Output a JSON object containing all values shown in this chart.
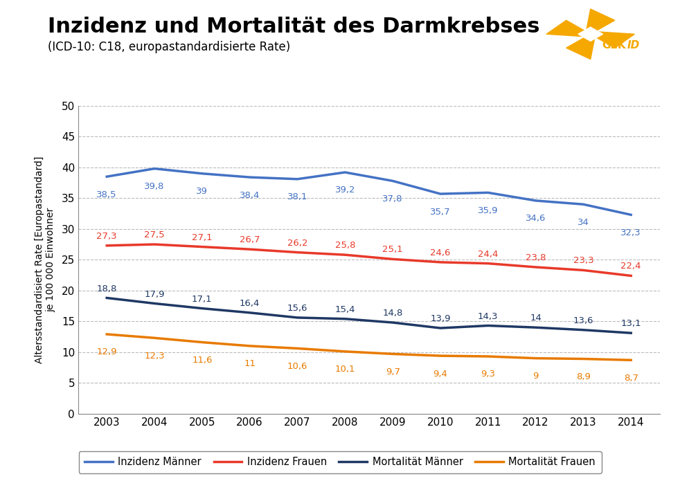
{
  "title": "Inzidenz und Mortalität des Darmkrebses",
  "subtitle": "(ICD-10: C18, europastandardisierte Rate)",
  "ylabel": "Altersstandardisiert Rate [Europastandard]\nje 100 000 Einwohner",
  "years": [
    2003,
    2004,
    2005,
    2006,
    2007,
    2008,
    2009,
    2010,
    2011,
    2012,
    2013,
    2014
  ],
  "inzidenz_maenner": [
    38.5,
    39.8,
    39.0,
    38.4,
    38.1,
    39.2,
    37.8,
    35.7,
    35.9,
    34.6,
    34.0,
    32.3
  ],
  "inzidenz_frauen": [
    27.3,
    27.5,
    27.1,
    26.7,
    26.2,
    25.8,
    25.1,
    24.6,
    24.4,
    23.8,
    23.3,
    22.4
  ],
  "mortalitaet_maenner": [
    18.8,
    17.9,
    17.1,
    16.4,
    15.6,
    15.4,
    14.8,
    13.9,
    14.3,
    14.0,
    13.6,
    13.1
  ],
  "mortalitaet_frauen": [
    12.9,
    12.3,
    11.6,
    11.0,
    10.6,
    10.1,
    9.7,
    9.4,
    9.3,
    9.0,
    8.9,
    8.7
  ],
  "color_inzidenz_maenner": "#4472C4",
  "color_inzidenz_frauen": "#E8392A",
  "color_mortalitaet_maenner": "#1F3864",
  "color_mortalitaet_frauen": "#E87A00",
  "ylim": [
    0,
    50
  ],
  "yticks": [
    0,
    5,
    10,
    15,
    20,
    25,
    30,
    35,
    40,
    45,
    50
  ],
  "background_color": "#FFFFFF",
  "plot_bg_color": "#FFFFFF",
  "grid_color": "#BBBBBB",
  "title_fontsize": 22,
  "subtitle_fontsize": 12,
  "label_fontsize": 9.5,
  "tick_fontsize": 11,
  "legend_labels": [
    "Inzidenz Männer",
    "Inzidenz Frauen",
    "Mortalität Männer",
    "Mortalität Frauen"
  ],
  "logo_color": "#F5A800",
  "logo_text_color": "#F5A800"
}
